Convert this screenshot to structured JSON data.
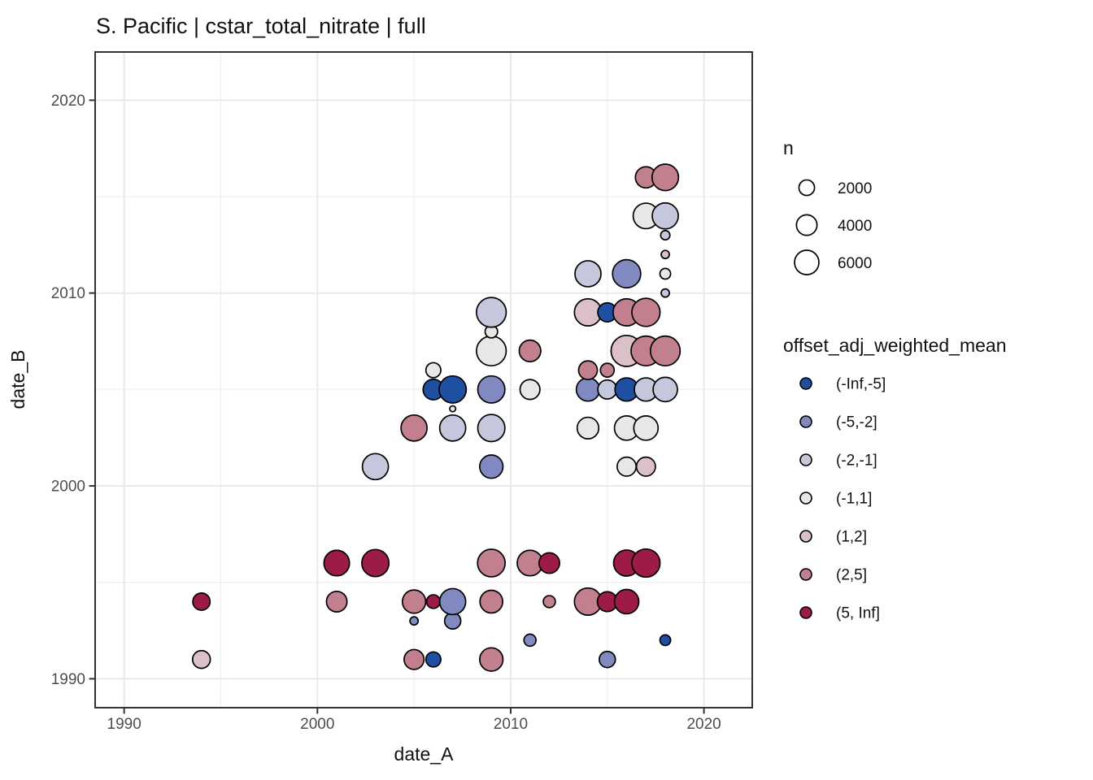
{
  "title": "S. Pacific | cstar_total_nitrate | full",
  "colors": {
    "panel_border": "#333333",
    "grid_major": "#e9e9e9",
    "grid_minor": "#f2f2f2",
    "point_outline": "#000000",
    "tick_label": "#4d4d4d",
    "background": "#ffffff"
  },
  "size_legend": {
    "title": "n",
    "entries": [
      {
        "label": "2000",
        "n": 2000
      },
      {
        "label": "4000",
        "n": 4000
      },
      {
        "label": "6000",
        "n": 6000
      }
    ]
  },
  "color_legend": {
    "title": "offset_adj_weighted_mean",
    "entries": [
      {
        "label": "(-Inf,-5]",
        "color": "#1e4fa1"
      },
      {
        "label": "(-5,-2]",
        "color": "#8089c0"
      },
      {
        "label": "(-2,-1]",
        "color": "#c5c8dd"
      },
      {
        "label": "(-1,1]",
        "color": "#e8e7e5"
      },
      {
        "label": "(1,2]",
        "color": "#dcc0c7"
      },
      {
        "label": "(2,5]",
        "color": "#c27f8e"
      },
      {
        "label": "(5, Inf]",
        "color": "#9c1b49"
      }
    ]
  },
  "chart_data": {
    "type": "scatter",
    "title": "S. Pacific | cstar_total_nitrate | full",
    "xlabel": "date_A",
    "ylabel": "date_B",
    "xlim": [
      1988.5,
      2022.5
    ],
    "ylim": [
      1988.5,
      2022.5
    ],
    "x_ticks": [
      1990,
      2000,
      2010,
      2020
    ],
    "y_ticks": [
      1990,
      2000,
      2010,
      2020
    ],
    "x_minor_ticks": [
      1995,
      2005,
      2015
    ],
    "y_minor_ticks": [
      1995,
      2005,
      2015
    ],
    "grid": true,
    "legend_position": "right",
    "size_variable": "n",
    "color_variable": "offset_adj_weighted_mean",
    "points": [
      {
        "date_A": 1994,
        "date_B": 1991,
        "bin": "(1,2]",
        "n": 2800
      },
      {
        "date_A": 1994,
        "date_B": 1994,
        "bin": "(5, Inf]",
        "n": 2600
      },
      {
        "date_A": 2001,
        "date_B": 1994,
        "bin": "(2,5]",
        "n": 4000
      },
      {
        "date_A": 2001,
        "date_B": 1996,
        "bin": "(5, Inf]",
        "n": 6700
      },
      {
        "date_A": 2003,
        "date_B": 1996,
        "bin": "(5, Inf]",
        "n": 7700
      },
      {
        "date_A": 2003,
        "date_B": 2001,
        "bin": "(-2,-1]",
        "n": 7000
      },
      {
        "date_A": 2005,
        "date_B": 1991,
        "bin": "(2,5]",
        "n": 3700
      },
      {
        "date_A": 2005,
        "date_B": 1993,
        "bin": "(-5,-2]",
        "n": 300
      },
      {
        "date_A": 2005,
        "date_B": 1994,
        "bin": "(2,5]",
        "n": 5400
      },
      {
        "date_A": 2005,
        "date_B": 2003,
        "bin": "(2,5]",
        "n": 7000
      },
      {
        "date_A": 2006,
        "date_B": 1991,
        "bin": "(-Inf,-5]",
        "n": 1800
      },
      {
        "date_A": 2006,
        "date_B": 1994,
        "bin": "(5, Inf]",
        "n": 1400
      },
      {
        "date_A": 2006,
        "date_B": 2005,
        "bin": "(-Inf,-5]",
        "n": 4000
      },
      {
        "date_A": 2006,
        "date_B": 2006,
        "bin": "(-1,1]",
        "n": 1800
      },
      {
        "date_A": 2007,
        "date_B": 1993,
        "bin": "(-5,-2]",
        "n": 2200
      },
      {
        "date_A": 2007,
        "date_B": 1994,
        "bin": "(-5,-2]",
        "n": 7000
      },
      {
        "date_A": 2007,
        "date_B": 2003,
        "bin": "(-2,-1]",
        "n": 7000
      },
      {
        "date_A": 2007,
        "date_B": 2004,
        "bin": "(-1,1]",
        "n": 80
      },
      {
        "date_A": 2007,
        "date_B": 2005,
        "bin": "(-Inf,-5]",
        "n": 7700
      },
      {
        "date_A": 2009,
        "date_B": 1991,
        "bin": "(2,5]",
        "n": 5400
      },
      {
        "date_A": 2009,
        "date_B": 1994,
        "bin": "(2,5]",
        "n": 5100
      },
      {
        "date_A": 2009,
        "date_B": 1996,
        "bin": "(2,5]",
        "n": 8000
      },
      {
        "date_A": 2009,
        "date_B": 2001,
        "bin": "(-5,-2]",
        "n": 5400
      },
      {
        "date_A": 2009,
        "date_B": 2003,
        "bin": "(-2,-1]",
        "n": 7700
      },
      {
        "date_A": 2009,
        "date_B": 2005,
        "bin": "(-5,-2]",
        "n": 7700
      },
      {
        "date_A": 2009,
        "date_B": 2007,
        "bin": "(-1,1]",
        "n": 9500
      },
      {
        "date_A": 2009,
        "date_B": 2008,
        "bin": "(-1,1]",
        "n": 1100
      },
      {
        "date_A": 2009,
        "date_B": 2009,
        "bin": "(-2,-1]",
        "n": 9500
      },
      {
        "date_A": 2011,
        "date_B": 1992,
        "bin": "(-5,-2]",
        "n": 1000
      },
      {
        "date_A": 2011,
        "date_B": 1996,
        "bin": "(2,5]",
        "n": 6700
      },
      {
        "date_A": 2011,
        "date_B": 2005,
        "bin": "(-1,1]",
        "n": 3700
      },
      {
        "date_A": 2011,
        "date_B": 2007,
        "bin": "(2,5]",
        "n": 4500
      },
      {
        "date_A": 2012,
        "date_B": 1994,
        "bin": "(2,5]",
        "n": 1000
      },
      {
        "date_A": 2012,
        "date_B": 1996,
        "bin": "(5, Inf]",
        "n": 4000
      },
      {
        "date_A": 2014,
        "date_B": 1994,
        "bin": "(2,5]",
        "n": 7700
      },
      {
        "date_A": 2014,
        "date_B": 2003,
        "bin": "(-1,1]",
        "n": 4500
      },
      {
        "date_A": 2014,
        "date_B": 2005,
        "bin": "(-5,-2]",
        "n": 5400
      },
      {
        "date_A": 2014,
        "date_B": 2006,
        "bin": "(2,5]",
        "n": 3200
      },
      {
        "date_A": 2014,
        "date_B": 2009,
        "bin": "(1,2]",
        "n": 7700
      },
      {
        "date_A": 2014,
        "date_B": 2011,
        "bin": "(-2,-1]",
        "n": 7000
      },
      {
        "date_A": 2015,
        "date_B": 1991,
        "bin": "(-5,-2]",
        "n": 2200
      },
      {
        "date_A": 2015,
        "date_B": 1994,
        "bin": "(5, Inf]",
        "n": 3700
      },
      {
        "date_A": 2015,
        "date_B": 2005,
        "bin": "(-2,-1]",
        "n": 3300
      },
      {
        "date_A": 2015,
        "date_B": 2006,
        "bin": "(2,5]",
        "n": 1450
      },
      {
        "date_A": 2015,
        "date_B": 2009,
        "bin": "(-Inf,-5]",
        "n": 3300
      },
      {
        "date_A": 2016,
        "date_B": 1994,
        "bin": "(5, Inf]",
        "n": 6000
      },
      {
        "date_A": 2016,
        "date_B": 1996,
        "bin": "(5, Inf]",
        "n": 7000
      },
      {
        "date_A": 2016,
        "date_B": 2001,
        "bin": "(-1,1]",
        "n": 3300
      },
      {
        "date_A": 2016,
        "date_B": 2003,
        "bin": "(-1,1]",
        "n": 6000
      },
      {
        "date_A": 2016,
        "date_B": 2005,
        "bin": "(-Inf,-5]",
        "n": 5400
      },
      {
        "date_A": 2016,
        "date_B": 2007,
        "bin": "(1,2]",
        "n": 10500
      },
      {
        "date_A": 2016,
        "date_B": 2009,
        "bin": "(2,5]",
        "n": 7700
      },
      {
        "date_A": 2016,
        "date_B": 2011,
        "bin": "(-5,-2]",
        "n": 8400
      },
      {
        "date_A": 2017,
        "date_B": 1996,
        "bin": "(5, Inf]",
        "n": 8400
      },
      {
        "date_A": 2017,
        "date_B": 2001,
        "bin": "(1,2]",
        "n": 3300
      },
      {
        "date_A": 2017,
        "date_B": 2003,
        "bin": "(-1,1]",
        "n": 6000
      },
      {
        "date_A": 2017,
        "date_B": 2005,
        "bin": "(-2,-1]",
        "n": 5400
      },
      {
        "date_A": 2017,
        "date_B": 2007,
        "bin": "(2,5]",
        "n": 9500
      },
      {
        "date_A": 2017,
        "date_B": 2009,
        "bin": "(2,5]",
        "n": 8400
      },
      {
        "date_A": 2017,
        "date_B": 2014,
        "bin": "(-1,1]",
        "n": 6700
      },
      {
        "date_A": 2017,
        "date_B": 2016,
        "bin": "(2,5]",
        "n": 4300
      },
      {
        "date_A": 2018,
        "date_B": 1992,
        "bin": "(-Inf,-5]",
        "n": 700
      },
      {
        "date_A": 2018,
        "date_B": 2005,
        "bin": "(-2,-1]",
        "n": 6000
      },
      {
        "date_A": 2018,
        "date_B": 2007,
        "bin": "(2,5]",
        "n": 9500
      },
      {
        "date_A": 2018,
        "date_B": 2010,
        "bin": "(-2,-1]",
        "n": 300
      },
      {
        "date_A": 2018,
        "date_B": 2011,
        "bin": "(-1,1]",
        "n": 700
      },
      {
        "date_A": 2018,
        "date_B": 2012,
        "bin": "(1,2]",
        "n": 290
      },
      {
        "date_A": 2018,
        "date_B": 2013,
        "bin": "(-2,-1]",
        "n": 450
      },
      {
        "date_A": 2018,
        "date_B": 2014,
        "bin": "(-2,-1]",
        "n": 7000
      },
      {
        "date_A": 2018,
        "date_B": 2016,
        "bin": "(2,5]",
        "n": 7300
      }
    ]
  }
}
